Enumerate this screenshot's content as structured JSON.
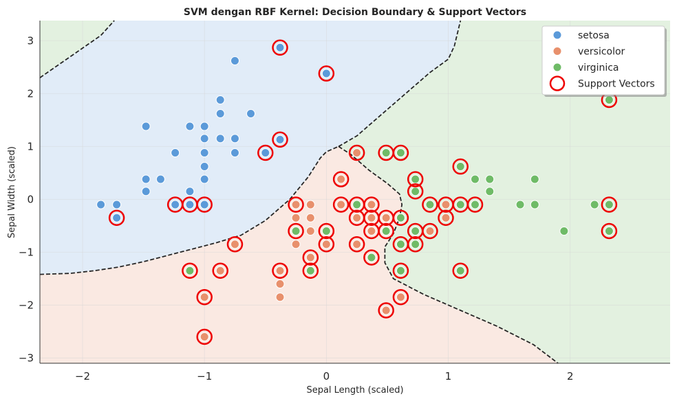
{
  "chart_data": {
    "type": "scatter",
    "title": "SVM dengan RBF Kernel: Decision Boundary & Support Vectors",
    "xlabel": "Sepal Length (scaled)",
    "ylabel": "Sepal Width (scaled)",
    "xlim": [
      -2.35,
      2.82
    ],
    "ylim": [
      -3.1,
      3.38
    ],
    "xticks": [
      -2,
      -1,
      0,
      1,
      2
    ],
    "yticks": [
      -3,
      -2,
      -1,
      0,
      1,
      2,
      3
    ],
    "grid": true,
    "legend_position": "top-right",
    "colors": {
      "setosa": "#5b9ad9",
      "versicolor": "#e8906c",
      "virginica": "#6fbb67",
      "support_vector": "#ee0000",
      "region_setosa": "#e1ecf8",
      "region_versicolor": "#fae9e2",
      "region_virginica": "#e3f1e0",
      "boundary": "#262626"
    },
    "legend": [
      {
        "label": "setosa",
        "marker": "dot",
        "color": "#5b9ad9"
      },
      {
        "label": "versicolor",
        "marker": "dot",
        "color": "#e8906c"
      },
      {
        "label": "virginica",
        "marker": "dot",
        "color": "#6fbb67"
      },
      {
        "label": "Support Vectors",
        "marker": "ring",
        "color": "#ee0000"
      }
    ],
    "series": [
      {
        "name": "setosa",
        "points": [
          [
            -1.85,
            -0.1
          ],
          [
            -1.72,
            -0.1
          ],
          [
            -1.72,
            -0.35
          ],
          [
            -1.48,
            1.38
          ],
          [
            -1.48,
            0.38
          ],
          [
            -1.48,
            0.15
          ],
          [
            -1.36,
            0.38
          ],
          [
            -1.24,
            0.88
          ],
          [
            -1.24,
            -0.1
          ],
          [
            -1.12,
            1.38
          ],
          [
            -1.12,
            0.15
          ],
          [
            -1.12,
            -0.1
          ],
          [
            -1.0,
            1.38
          ],
          [
            -1.0,
            1.15
          ],
          [
            -1.0,
            0.88
          ],
          [
            -1.0,
            0.62
          ],
          [
            -1.0,
            0.38
          ],
          [
            -1.0,
            -0.1
          ],
          [
            -0.87,
            1.88
          ],
          [
            -0.87,
            1.62
          ],
          [
            -0.87,
            1.15
          ],
          [
            -0.75,
            2.62
          ],
          [
            -0.75,
            1.15
          ],
          [
            -0.75,
            0.88
          ],
          [
            -0.62,
            1.62
          ],
          [
            -0.5,
            0.88
          ],
          [
            -0.38,
            2.87
          ],
          [
            -0.38,
            1.13
          ],
          [
            0.0,
            2.38
          ]
        ]
      },
      {
        "name": "versicolor",
        "points": [
          [
            -1.0,
            -1.85
          ],
          [
            -1.0,
            -2.6
          ],
          [
            -0.87,
            -1.35
          ],
          [
            -0.75,
            -0.85
          ],
          [
            -0.38,
            -1.35
          ],
          [
            -0.38,
            -1.6
          ],
          [
            -0.38,
            -1.85
          ],
          [
            -0.25,
            -0.1
          ],
          [
            -0.25,
            -0.35
          ],
          [
            -0.25,
            -0.85
          ],
          [
            -0.13,
            -0.1
          ],
          [
            -0.13,
            -0.35
          ],
          [
            -0.13,
            -0.6
          ],
          [
            -0.13,
            -1.1
          ],
          [
            0.0,
            -0.85
          ],
          [
            0.12,
            0.38
          ],
          [
            0.12,
            -0.1
          ],
          [
            0.25,
            0.88
          ],
          [
            0.25,
            -0.35
          ],
          [
            0.25,
            -0.85
          ],
          [
            0.37,
            -0.1
          ],
          [
            0.37,
            -0.35
          ],
          [
            0.37,
            -0.6
          ],
          [
            0.49,
            -0.35
          ],
          [
            0.49,
            -2.1
          ],
          [
            0.61,
            -0.35
          ],
          [
            0.61,
            -1.85
          ],
          [
            0.85,
            -0.6
          ],
          [
            0.98,
            -0.1
          ],
          [
            0.98,
            -0.35
          ]
        ]
      },
      {
        "name": "virginica",
        "points": [
          [
            -1.12,
            -1.35
          ],
          [
            -0.25,
            -0.6
          ],
          [
            -0.13,
            -1.35
          ],
          [
            0.0,
            -0.6
          ],
          [
            0.25,
            -0.1
          ],
          [
            0.37,
            -1.1
          ],
          [
            0.49,
            0.88
          ],
          [
            0.49,
            -0.6
          ],
          [
            0.61,
            0.88
          ],
          [
            0.61,
            -0.35
          ],
          [
            0.61,
            -0.85
          ],
          [
            0.61,
            -1.35
          ],
          [
            0.73,
            0.38
          ],
          [
            0.73,
            0.15
          ],
          [
            0.73,
            -0.6
          ],
          [
            0.73,
            -0.85
          ],
          [
            0.85,
            -0.1
          ],
          [
            1.1,
            0.62
          ],
          [
            1.1,
            -0.1
          ],
          [
            1.1,
            -1.35
          ],
          [
            1.22,
            0.38
          ],
          [
            1.22,
            -0.1
          ],
          [
            1.34,
            0.38
          ],
          [
            1.34,
            0.15
          ],
          [
            1.59,
            -0.1
          ],
          [
            1.71,
            0.38
          ],
          [
            1.71,
            -0.1
          ],
          [
            1.95,
            -0.6
          ],
          [
            2.2,
            -0.1
          ],
          [
            2.32,
            1.88
          ],
          [
            2.32,
            -0.1
          ],
          [
            2.32,
            -0.6
          ]
        ]
      }
    ],
    "support_vectors": [
      [
        -1.72,
        -0.35
      ],
      [
        -1.24,
        -0.1
      ],
      [
        -1.12,
        -0.1
      ],
      [
        -1.0,
        -0.1
      ],
      [
        -0.5,
        0.88
      ],
      [
        -0.38,
        2.87
      ],
      [
        -0.38,
        1.13
      ],
      [
        0.0,
        2.38
      ],
      [
        -1.12,
        -1.35
      ],
      [
        -1.0,
        -1.85
      ],
      [
        -1.0,
        -2.6
      ],
      [
        -0.87,
        -1.35
      ],
      [
        -0.75,
        -0.85
      ],
      [
        -0.38,
        -1.35
      ],
      [
        -0.25,
        -0.1
      ],
      [
        -0.25,
        -0.6
      ],
      [
        -0.13,
        -1.1
      ],
      [
        -0.13,
        -1.35
      ],
      [
        0.0,
        -0.6
      ],
      [
        0.0,
        -0.85
      ],
      [
        0.12,
        0.38
      ],
      [
        0.12,
        -0.1
      ],
      [
        0.25,
        0.88
      ],
      [
        0.25,
        -0.1
      ],
      [
        0.25,
        -0.35
      ],
      [
        0.25,
        -0.85
      ],
      [
        0.37,
        -0.1
      ],
      [
        0.37,
        -0.35
      ],
      [
        0.37,
        -0.6
      ],
      [
        0.37,
        -1.1
      ],
      [
        0.49,
        0.88
      ],
      [
        0.49,
        -0.35
      ],
      [
        0.49,
        -0.6
      ],
      [
        0.49,
        -2.1
      ],
      [
        0.61,
        0.88
      ],
      [
        0.61,
        -0.35
      ],
      [
        0.61,
        -0.85
      ],
      [
        0.61,
        -1.35
      ],
      [
        0.61,
        -1.85
      ],
      [
        0.73,
        0.38
      ],
      [
        0.73,
        0.15
      ],
      [
        0.73,
        -0.6
      ],
      [
        0.73,
        -0.85
      ],
      [
        0.85,
        -0.1
      ],
      [
        0.85,
        -0.6
      ],
      [
        0.98,
        -0.1
      ],
      [
        0.98,
        -0.35
      ],
      [
        1.1,
        0.62
      ],
      [
        1.1,
        -0.1
      ],
      [
        1.1,
        -1.35
      ],
      [
        1.22,
        -0.1
      ],
      [
        2.32,
        1.88
      ],
      [
        2.32,
        -0.1
      ],
      [
        2.32,
        -0.6
      ]
    ],
    "decision_boundaries": [
      {
        "name": "setosa-virginica",
        "points": [
          [
            -2.35,
            2.3
          ],
          [
            -2.1,
            2.7
          ],
          [
            -1.85,
            3.1
          ],
          [
            -1.74,
            3.38
          ]
        ]
      },
      {
        "name": "setosa-versicolor",
        "points": [
          [
            -2.35,
            -1.42
          ],
          [
            -2.1,
            -1.4
          ],
          [
            -1.9,
            -1.35
          ],
          [
            -1.7,
            -1.28
          ],
          [
            -1.5,
            -1.18
          ],
          [
            -1.3,
            -1.06
          ],
          [
            -1.1,
            -0.94
          ],
          [
            -0.9,
            -0.82
          ],
          [
            -0.7,
            -0.68
          ],
          [
            -0.5,
            -0.4
          ],
          [
            -0.3,
            0.0
          ],
          [
            -0.15,
            0.42
          ],
          [
            -0.05,
            0.78
          ],
          [
            0.0,
            0.9
          ],
          [
            0.1,
            1.0
          ]
        ]
      },
      {
        "name": "setosa-virginica",
        "points": [
          [
            0.1,
            1.0
          ],
          [
            0.25,
            1.2
          ],
          [
            0.4,
            1.5
          ],
          [
            0.55,
            1.8
          ],
          [
            0.7,
            2.1
          ],
          [
            0.85,
            2.4
          ],
          [
            1.0,
            2.65
          ],
          [
            1.05,
            2.9
          ],
          [
            1.1,
            3.38
          ]
        ]
      },
      {
        "name": "versicolor-virginica",
        "points": [
          [
            0.1,
            1.0
          ],
          [
            0.2,
            0.85
          ],
          [
            0.35,
            0.55
          ],
          [
            0.5,
            0.3
          ],
          [
            0.6,
            0.1
          ],
          [
            0.62,
            -0.1
          ],
          [
            0.6,
            -0.35
          ],
          [
            0.55,
            -0.65
          ],
          [
            0.48,
            -0.9
          ],
          [
            0.48,
            -1.2
          ],
          [
            0.55,
            -1.5
          ],
          [
            0.8,
            -1.8
          ],
          [
            1.1,
            -2.1
          ],
          [
            1.4,
            -2.4
          ],
          [
            1.7,
            -2.75
          ],
          [
            1.9,
            -3.1
          ]
        ]
      }
    ]
  }
}
